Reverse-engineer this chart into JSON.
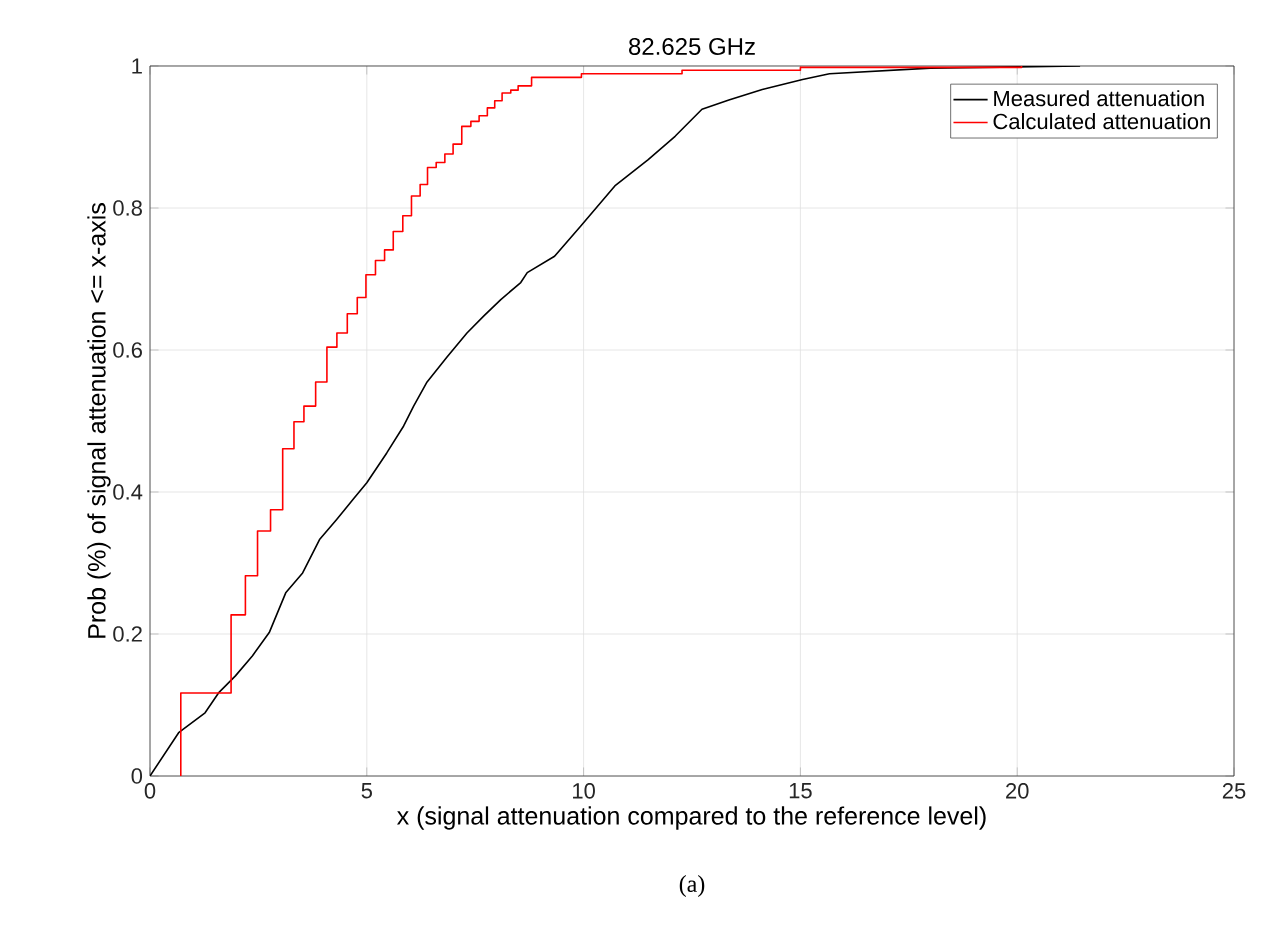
{
  "chart_data": {
    "type": "line",
    "title": "82.625 GHz",
    "xlabel": "x (signal attenuation compared to the reference level)",
    "ylabel": "Prob (%) of signal attenuation <= x-axis",
    "annotations": [
      "(a)"
    ],
    "series": [
      {
        "name": "Measured attenuation",
        "color": "#000000",
        "x": [
          0,
          0.66,
          1.27,
          1.58,
          1.97,
          2.36,
          2.75,
          3.13,
          3.52,
          3.91,
          4.3,
          4.69,
          5.0,
          5.46,
          5.85,
          6.08,
          6.39,
          6.85,
          7.31,
          7.7,
          8.09,
          8.55,
          8.7,
          9.33,
          9.94,
          10.72,
          11.49,
          12.11,
          12.73,
          13.35,
          14.12,
          15.05,
          15.67,
          18.0,
          21.45
        ],
        "values": [
          0,
          0.061,
          0.089,
          0.117,
          0.141,
          0.169,
          0.202,
          0.258,
          0.286,
          0.333,
          0.361,
          0.39,
          0.413,
          0.455,
          0.493,
          0.521,
          0.555,
          0.59,
          0.624,
          0.648,
          0.671,
          0.695,
          0.709,
          0.732,
          0.775,
          0.831,
          0.868,
          0.901,
          0.939,
          0.952,
          0.967,
          0.981,
          0.989,
          0.997,
          1.0
        ]
      },
      {
        "name": "Calculated attenuation",
        "color": "#ff0000",
        "type": "step",
        "x": [
          0.71,
          0.71,
          1.87,
          2.2,
          2.48,
          2.78,
          3.06,
          3.32,
          3.55,
          3.82,
          4.08,
          4.31,
          4.55,
          4.78,
          4.98,
          5.2,
          5.41,
          5.61,
          5.83,
          6.03,
          6.23,
          6.4,
          6.6,
          6.8,
          6.99,
          7.19,
          7.4,
          7.59,
          7.78,
          7.95,
          8.12,
          8.32,
          8.49,
          8.8,
          9.95,
          12.27,
          15.0,
          20.1
        ],
        "values": [
          0,
          0.117,
          0.227,
          0.282,
          0.345,
          0.375,
          0.461,
          0.499,
          0.521,
          0.555,
          0.604,
          0.624,
          0.651,
          0.674,
          0.706,
          0.726,
          0.741,
          0.767,
          0.789,
          0.817,
          0.833,
          0.857,
          0.864,
          0.876,
          0.89,
          0.915,
          0.922,
          0.93,
          0.941,
          0.951,
          0.962,
          0.966,
          0.972,
          0.984,
          0.989,
          0.994,
          0.998,
          1.0
        ]
      }
    ],
    "xlim": [
      0,
      25
    ],
    "ylim": [
      0,
      1
    ],
    "xticks": [
      0,
      5,
      10,
      15,
      20,
      25
    ],
    "yticks": [
      0,
      0.2,
      0.4,
      0.6,
      0.8,
      1
    ],
    "grid": true,
    "legend": "top right",
    "marker": "none",
    "line_style": "solid"
  }
}
